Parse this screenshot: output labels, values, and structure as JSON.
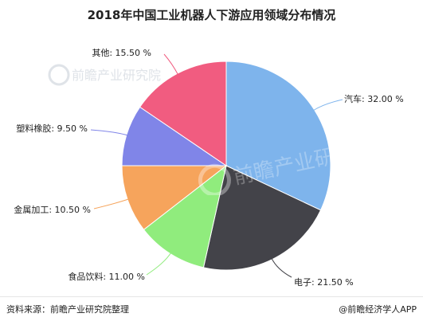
{
  "chart_data": {
    "type": "pie",
    "title": "2018年中国工业机器人下游应用领域分布情况",
    "slices": [
      {
        "label": "汽车",
        "value": 32.0,
        "text": "汽车: 32.00 %",
        "color": "#7eb4ec"
      },
      {
        "label": "电子",
        "value": 21.5,
        "text": "电子: 21.50 %",
        "color": "#434349"
      },
      {
        "label": "食品饮料",
        "value": 11.0,
        "text": "食品饮料: 11.00 %",
        "color": "#90ec7d"
      },
      {
        "label": "金属加工",
        "value": 10.5,
        "text": "金属加工: 10.50 %",
        "color": "#f6a45c"
      },
      {
        "label": "塑料橡胶",
        "value": 9.5,
        "text": "塑料橡胶: 9.50 %",
        "color": "#8085e8"
      },
      {
        "label": "其他",
        "value": 15.5,
        "text": "其他: 15.50 %",
        "color": "#f15c80"
      }
    ]
  },
  "footer": {
    "source": "资料来源：前瞻产业研究院整理",
    "brand": "@前瞻经济学人APP"
  },
  "watermark": {
    "text": "前瞻产业研究院"
  }
}
